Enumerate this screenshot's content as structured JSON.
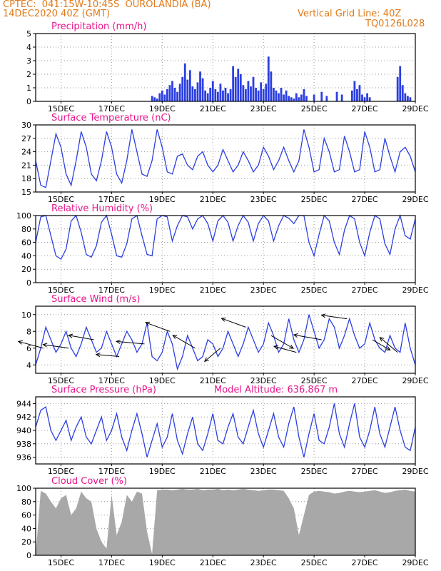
{
  "header": {
    "line1": "CPTEC:  041:15W-10:45S  OUROLANDIA (BA)",
    "line2": "14DEC2020 40Z (GMT)",
    "grid_note": "Vertical Grid Line: 40Z",
    "run_code": "TQ0126L028",
    "model_altitude": "Model Altitude: 636.867 m"
  },
  "colors": {
    "header": "#e07a1b",
    "title": "#e8168c",
    "line": "#2c3fe0",
    "bar": "#2c3fe0",
    "cloud": "#a8a8a8",
    "arrow": "#000000",
    "grid": "#9a9a9a"
  },
  "x_axis": {
    "range": [
      0,
      15
    ],
    "tick_positions": [
      1,
      3,
      5,
      7,
      9,
      11,
      13,
      15
    ],
    "tick_labels": [
      "15DEC",
      "17DEC",
      "19DEC",
      "21DEC",
      "23DEC",
      "25DEC",
      "27DEC",
      "29DEC"
    ]
  },
  "chart_data": [
    {
      "id": "precip",
      "type": "bar",
      "title": "Precipitation (mm/h)",
      "ylim": [
        0,
        5
      ],
      "yticks": [
        0,
        1,
        2,
        3,
        4,
        5
      ],
      "x": [
        4.6,
        4.7,
        4.8,
        4.9,
        5.0,
        5.1,
        5.2,
        5.3,
        5.4,
        5.5,
        5.6,
        5.7,
        5.8,
        5.9,
        6.0,
        6.1,
        6.2,
        6.3,
        6.4,
        6.5,
        6.6,
        6.7,
        6.8,
        6.9,
        7.0,
        7.1,
        7.2,
        7.3,
        7.4,
        7.5,
        7.6,
        7.7,
        7.8,
        7.9,
        8.0,
        8.1,
        8.2,
        8.3,
        8.4,
        8.5,
        8.6,
        8.7,
        8.8,
        8.9,
        9.0,
        9.1,
        9.2,
        9.3,
        9.4,
        9.5,
        9.6,
        9.7,
        9.8,
        9.9,
        10.0,
        10.1,
        10.2,
        10.3,
        10.4,
        10.5,
        10.6,
        10.7,
        11.0,
        11.3,
        11.5,
        11.9,
        12.1,
        12.5,
        12.6,
        12.7,
        12.8,
        12.9,
        13.0,
        13.1,
        13.2,
        14.3,
        14.4,
        14.5,
        14.6,
        14.7,
        14.8
      ],
      "values": [
        0.4,
        0.3,
        0.2,
        0.6,
        0.8,
        0.5,
        0.9,
        1.2,
        1.5,
        1.0,
        0.7,
        1.3,
        1.8,
        2.8,
        1.6,
        2.3,
        1.1,
        0.9,
        1.4,
        2.2,
        1.7,
        0.8,
        0.6,
        1.0,
        1.5,
        0.9,
        0.7,
        1.3,
        0.8,
        1.0,
        0.6,
        0.9,
        2.6,
        1.8,
        2.4,
        2.0,
        1.2,
        0.9,
        1.5,
        1.1,
        1.8,
        1.0,
        0.8,
        1.4,
        0.9,
        1.3,
        3.3,
        2.2,
        1.0,
        0.8,
        0.6,
        1.0,
        0.5,
        0.8,
        0.4,
        0.3,
        0.2,
        0.6,
        0.3,
        0.5,
        0.9,
        0.4,
        0.5,
        0.7,
        0.4,
        0.7,
        0.5,
        0.8,
        1.5,
        0.9,
        1.2,
        0.5,
        0.3,
        0.6,
        0.3,
        1.8,
        2.6,
        1.2,
        0.6,
        0.4,
        0.3
      ]
    },
    {
      "id": "temp",
      "type": "line",
      "title": "Surface Temperature (nC)",
      "ylim": [
        15,
        30
      ],
      "yticks": [
        15,
        18,
        21,
        24,
        27,
        30
      ],
      "x": [
        0.0,
        0.2,
        0.4,
        0.6,
        0.8,
        1.0,
        1.2,
        1.4,
        1.6,
        1.8,
        2.0,
        2.2,
        2.4,
        2.6,
        2.8,
        3.0,
        3.2,
        3.4,
        3.6,
        3.8,
        4.0,
        4.2,
        4.4,
        4.6,
        4.8,
        5.0,
        5.2,
        5.4,
        5.6,
        5.8,
        6.0,
        6.2,
        6.4,
        6.6,
        6.8,
        7.0,
        7.2,
        7.4,
        7.6,
        7.8,
        8.0,
        8.2,
        8.4,
        8.6,
        8.8,
        9.0,
        9.2,
        9.4,
        9.6,
        9.8,
        10.0,
        10.2,
        10.4,
        10.6,
        10.8,
        11.0,
        11.2,
        11.4,
        11.6,
        11.8,
        12.0,
        12.2,
        12.4,
        12.6,
        12.8,
        13.0,
        13.2,
        13.4,
        13.6,
        13.8,
        14.0,
        14.2,
        14.4,
        14.6,
        14.8,
        15.0
      ],
      "values": [
        22,
        16.5,
        16,
        22,
        28,
        25,
        19,
        16.5,
        22,
        28.5,
        25,
        19,
        17.5,
        22,
        28.5,
        25,
        19,
        17,
        22,
        29,
        24,
        19,
        18.5,
        22,
        29,
        25,
        19.5,
        19,
        23,
        23.5,
        21,
        20,
        23,
        24,
        21,
        19.5,
        21,
        24.5,
        22,
        19.5,
        21,
        24,
        22,
        19.5,
        21,
        25,
        23,
        20,
        22,
        25,
        22,
        19.5,
        22,
        29,
        25,
        19.5,
        20,
        27,
        24,
        19.5,
        20,
        27.5,
        24,
        19.5,
        20,
        28.5,
        25,
        19.5,
        20,
        27,
        23,
        19.5,
        24,
        25,
        23,
        19.5
      ]
    },
    {
      "id": "humidity",
      "type": "line",
      "title": "Relative Humidity (%)",
      "ylim": [
        0,
        100
      ],
      "yticks": [
        0,
        20,
        40,
        60,
        80,
        100
      ],
      "x": [
        0.0,
        0.2,
        0.4,
        0.6,
        0.8,
        1.0,
        1.2,
        1.4,
        1.6,
        1.8,
        2.0,
        2.2,
        2.4,
        2.6,
        2.8,
        3.0,
        3.2,
        3.4,
        3.6,
        3.8,
        4.0,
        4.2,
        4.4,
        4.6,
        4.8,
        5.0,
        5.2,
        5.4,
        5.6,
        5.8,
        6.0,
        6.2,
        6.4,
        6.6,
        6.8,
        7.0,
        7.2,
        7.4,
        7.6,
        7.8,
        8.0,
        8.2,
        8.4,
        8.6,
        8.8,
        9.0,
        9.2,
        9.4,
        9.6,
        9.8,
        10.0,
        10.2,
        10.4,
        10.6,
        10.8,
        11.0,
        11.2,
        11.4,
        11.6,
        11.8,
        12.0,
        12.2,
        12.4,
        12.6,
        12.8,
        13.0,
        13.2,
        13.4,
        13.6,
        13.8,
        14.0,
        14.2,
        14.4,
        14.6,
        14.8,
        15.0
      ],
      "values": [
        60,
        98,
        100,
        70,
        40,
        35,
        50,
        92,
        100,
        75,
        42,
        38,
        55,
        90,
        100,
        72,
        40,
        38,
        58,
        95,
        100,
        70,
        42,
        40,
        95,
        100,
        98,
        62,
        85,
        100,
        98,
        80,
        95,
        100,
        88,
        62,
        92,
        100,
        90,
        62,
        85,
        100,
        90,
        62,
        88,
        100,
        92,
        62,
        85,
        100,
        96,
        88,
        100,
        100,
        60,
        40,
        72,
        100,
        92,
        60,
        42,
        78,
        100,
        95,
        60,
        40,
        75,
        100,
        95,
        58,
        42,
        80,
        100,
        70,
        65,
        95
      ]
    },
    {
      "id": "wind",
      "type": "line",
      "title": "Surface Wind (m/s)",
      "ylim": [
        3,
        11
      ],
      "yticks": [
        4,
        6,
        8,
        10
      ],
      "x": [
        0.0,
        0.2,
        0.4,
        0.6,
        0.8,
        1.0,
        1.2,
        1.4,
        1.6,
        1.8,
        2.0,
        2.2,
        2.4,
        2.6,
        2.8,
        3.0,
        3.2,
        3.4,
        3.6,
        3.8,
        4.0,
        4.2,
        4.4,
        4.6,
        4.8,
        5.0,
        5.2,
        5.4,
        5.6,
        5.8,
        6.0,
        6.2,
        6.4,
        6.6,
        6.8,
        7.0,
        7.2,
        7.4,
        7.6,
        7.8,
        8.0,
        8.2,
        8.4,
        8.6,
        8.8,
        9.0,
        9.2,
        9.4,
        9.6,
        9.8,
        10.0,
        10.2,
        10.4,
        10.6,
        10.8,
        11.0,
        11.2,
        11.4,
        11.6,
        11.8,
        12.0,
        12.2,
        12.4,
        12.6,
        12.8,
        13.0,
        13.2,
        13.4,
        13.6,
        13.8,
        14.0,
        14.2,
        14.4,
        14.6,
        14.8,
        15.0
      ],
      "values": [
        4.0,
        6.0,
        8.5,
        7.0,
        5.5,
        6.5,
        8.0,
        6.0,
        5.0,
        6.5,
        8.5,
        7.0,
        5.5,
        6.0,
        8.0,
        6.5,
        5.0,
        6.5,
        8.0,
        7.0,
        5.5,
        6.5,
        9.0,
        5.0,
        4.5,
        5.5,
        8.0,
        6.5,
        3.5,
        5.0,
        7.5,
        6.0,
        4.5,
        5.0,
        7.0,
        6.5,
        5.0,
        6.0,
        8.0,
        6.5,
        5.0,
        6.5,
        8.5,
        7.0,
        5.5,
        6.5,
        9.0,
        7.5,
        5.5,
        6.5,
        9.5,
        7.0,
        5.5,
        7.0,
        10.0,
        8.0,
        6.0,
        7.0,
        9.5,
        8.5,
        6.0,
        7.5,
        9.5,
        7.5,
        6.0,
        6.5,
        9.0,
        7.0,
        6.0,
        5.5,
        7.5,
        6.0,
        5.5,
        9.0,
        6.0,
        4.0
      ],
      "arrow_x": [
        0.3,
        1.3,
        2.3,
        3.3,
        4.3,
        5.3,
        6.3,
        7.3,
        8.3,
        9.3,
        10.3,
        11.3,
        12.3,
        13.3,
        14.3
      ],
      "arrow_dir_deg": [
        -165,
        -172,
        -170,
        -175,
        -175,
        -160,
        -150,
        140,
        -160,
        30,
        -165,
        -170,
        -172,
        30,
        -140
      ],
      "arrow_len": [
        1.0,
        1.0,
        1.0,
        0.9,
        1.1,
        1.0,
        1.0,
        0.8,
        1.0,
        1.0,
        0.9,
        1.1,
        1.0,
        0.8,
        0.9
      ]
    },
    {
      "id": "pressure",
      "type": "line",
      "title": "Surface Pressure (hPa)",
      "ylim": [
        935,
        945
      ],
      "yticks": [
        936,
        938,
        940,
        942,
        944
      ],
      "x": [
        0.0,
        0.2,
        0.4,
        0.6,
        0.8,
        1.0,
        1.2,
        1.4,
        1.6,
        1.8,
        2.0,
        2.2,
        2.4,
        2.6,
        2.8,
        3.0,
        3.2,
        3.4,
        3.6,
        3.8,
        4.0,
        4.2,
        4.4,
        4.6,
        4.8,
        5.0,
        5.2,
        5.4,
        5.6,
        5.8,
        6.0,
        6.2,
        6.4,
        6.6,
        6.8,
        7.0,
        7.2,
        7.4,
        7.6,
        7.8,
        8.0,
        8.2,
        8.4,
        8.6,
        8.8,
        9.0,
        9.2,
        9.4,
        9.6,
        9.8,
        10.0,
        10.2,
        10.4,
        10.6,
        10.8,
        11.0,
        11.2,
        11.4,
        11.6,
        11.8,
        12.0,
        12.2,
        12.4,
        12.6,
        12.8,
        13.0,
        13.2,
        13.4,
        13.6,
        13.8,
        14.0,
        14.2,
        14.4,
        14.6,
        14.8,
        15.0
      ],
      "values": [
        940.5,
        943,
        943.5,
        940,
        938.5,
        940,
        941.5,
        938.5,
        940.5,
        942,
        939,
        938,
        940,
        942,
        938.5,
        940,
        942.5,
        939,
        937,
        940,
        942.5,
        939.5,
        936,
        938.5,
        941,
        937.5,
        939,
        942.5,
        938.5,
        936.5,
        939.5,
        942,
        938,
        937,
        939.5,
        942.5,
        938.5,
        938,
        940.5,
        942.5,
        939,
        938,
        940.5,
        943,
        939.5,
        937.5,
        940,
        942.5,
        939,
        937.5,
        941,
        943.5,
        939,
        936,
        939.5,
        942.5,
        938.5,
        938,
        940.5,
        944,
        939.5,
        937.5,
        941,
        944,
        939,
        937.5,
        940,
        943.5,
        939.5,
        937.5,
        940.5,
        943.5,
        940,
        937.5,
        937,
        940.5
      ]
    },
    {
      "id": "cloud",
      "type": "area",
      "title": "Cloud Cover (%)",
      "ylim": [
        0,
        100
      ],
      "yticks": [
        0,
        20,
        40,
        60,
        80,
        100
      ],
      "x": [
        0.0,
        0.2,
        0.4,
        0.6,
        0.8,
        1.0,
        1.2,
        1.4,
        1.6,
        1.8,
        2.0,
        2.2,
        2.4,
        2.6,
        2.8,
        3.0,
        3.2,
        3.4,
        3.6,
        3.8,
        4.0,
        4.2,
        4.4,
        4.6,
        4.8,
        5.0,
        5.2,
        5.4,
        5.6,
        5.8,
        6.0,
        6.2,
        6.4,
        6.6,
        6.8,
        7.0,
        7.2,
        7.4,
        7.6,
        7.8,
        8.0,
        8.2,
        8.4,
        8.6,
        8.8,
        9.0,
        9.2,
        9.4,
        9.6,
        9.8,
        10.0,
        10.2,
        10.4,
        10.6,
        10.8,
        11.0,
        11.2,
        11.4,
        11.6,
        11.8,
        12.0,
        12.2,
        12.4,
        12.6,
        12.8,
        13.0,
        13.2,
        13.4,
        13.6,
        13.8,
        14.0,
        14.2,
        14.4,
        14.6,
        14.8,
        15.0
      ],
      "values": [
        0,
        96,
        92,
        80,
        70,
        85,
        90,
        60,
        70,
        95,
        85,
        80,
        40,
        20,
        10,
        90,
        30,
        50,
        90,
        80,
        95,
        92,
        35,
        2,
        97,
        98,
        98,
        97,
        98,
        99,
        98,
        98,
        99,
        97,
        98,
        98,
        99,
        97,
        98,
        97,
        98,
        99,
        98,
        97,
        96,
        97,
        98,
        98,
        97,
        96,
        85,
        70,
        30,
        60,
        90,
        95,
        96,
        95,
        94,
        92,
        93,
        95,
        96,
        95,
        94,
        95,
        96,
        97,
        95,
        93,
        94,
        96,
        97,
        98,
        96,
        95
      ]
    }
  ]
}
